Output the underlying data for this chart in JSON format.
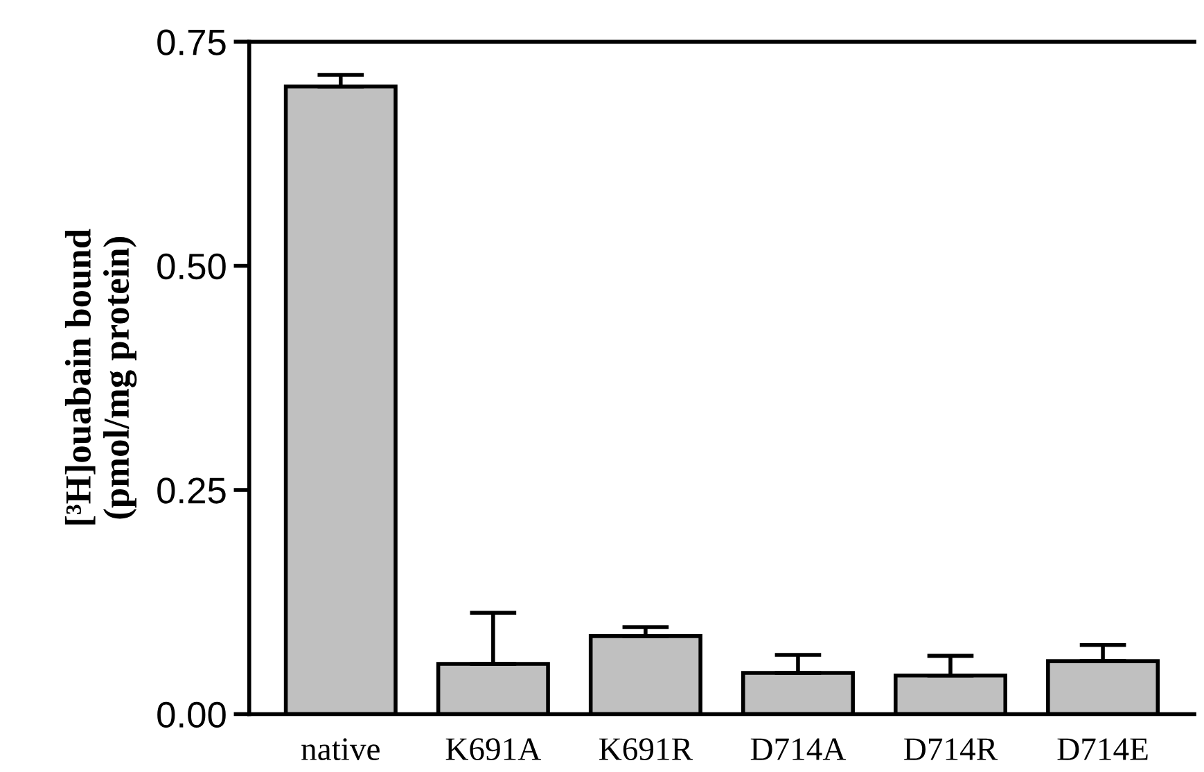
{
  "chart_data": {
    "type": "bar",
    "ylabel": "[³H]ouabain bound\n(pmol/mg protein)",
    "categories": [
      "native",
      "K691A",
      "K691R",
      "D714A",
      "D714R",
      "D714E"
    ],
    "values": [
      0.7,
      0.056,
      0.087,
      0.046,
      0.043,
      0.059
    ],
    "errors": [
      [
        0.7,
        0.713
      ],
      [
        0.056,
        0.113
      ],
      [
        0.087,
        0.097
      ],
      [
        0.046,
        0.066
      ],
      [
        0.043,
        0.065
      ],
      [
        0.059,
        0.077
      ]
    ],
    "color": "#c0c0c0",
    "ylim": [
      0,
      0.75
    ],
    "yticks": [
      {
        "value": 0,
        "label": "0.00"
      },
      {
        "value": 0.25,
        "label": "0.25"
      },
      {
        "value": 0.5,
        "label": "0.50"
      },
      {
        "value": 0.75,
        "label": "0.75"
      }
    ],
    "grid": false
  }
}
